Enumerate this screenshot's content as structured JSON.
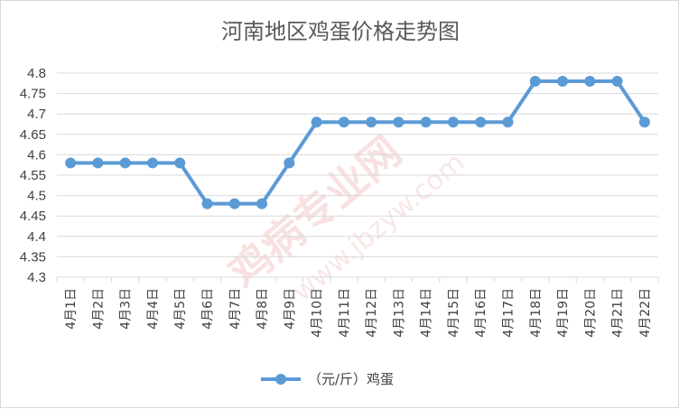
{
  "chart_data": {
    "type": "line",
    "title": "河南地区鸡蛋价格走势图",
    "categories": [
      "4月1日",
      "4月2日",
      "4月3日",
      "4月4日",
      "4月5日",
      "4月6日",
      "4月7日",
      "4月8日",
      "4月9日",
      "4月10日",
      "4月11日",
      "4月12日",
      "4月13日",
      "4月14日",
      "4月15日",
      "4月16日",
      "4月17日",
      "4月18日",
      "4月19日",
      "4月20日",
      "4月21日",
      "4月22日"
    ],
    "series": [
      {
        "name": "（元/斤）鸡蛋",
        "values": [
          4.58,
          4.58,
          4.58,
          4.58,
          4.58,
          4.48,
          4.48,
          4.48,
          4.58,
          4.68,
          4.68,
          4.68,
          4.68,
          4.68,
          4.68,
          4.68,
          4.68,
          4.78,
          4.78,
          4.78,
          4.78,
          4.68
        ]
      }
    ],
    "ylim": [
      4.3,
      4.8
    ],
    "yticks": [
      "4.3",
      "4.35",
      "4.4",
      "4.45",
      "4.5",
      "4.55",
      "4.6",
      "4.65",
      "4.7",
      "4.75",
      "4.8"
    ],
    "grid": true,
    "legend_position": "bottom",
    "line_color": "#5b9bd5",
    "watermark": [
      "鸡病专业网",
      "www.jbzyw.com"
    ]
  }
}
